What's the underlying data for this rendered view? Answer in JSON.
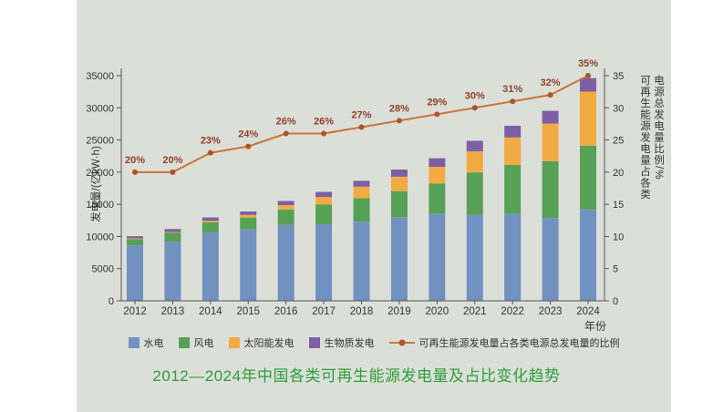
{
  "title": "2012—2024年中国各类可再生能源发电量及占比变化趋势",
  "axes": {
    "left_label": "发电量/(亿kW·h)",
    "right_label_line1": "可再生能源发电量占各类",
    "right_label_line2": "电源总发电量比例/%",
    "x_label": "年份"
  },
  "colors": {
    "panel": "#dcdfd8",
    "axis": "#555555",
    "tick_text": "#333333",
    "line": "#c8763c",
    "line_dot": "#a9562c",
    "pct_label": "#8f3f2c",
    "title": "#2e9e3e"
  },
  "chart_data": {
    "type": "bar",
    "subtype": "stacked-bars-with-percentage-line",
    "categories": [
      "2012",
      "2013",
      "2014",
      "2015",
      "2016",
      "2017",
      "2018",
      "2019",
      "2020",
      "2021",
      "2022",
      "2023",
      "2024"
    ],
    "series": [
      {
        "name": "水电",
        "color": "#7191c1",
        "values": [
          8600,
          9200,
          10600,
          11100,
          11800,
          11900,
          12300,
          13000,
          13550,
          13400,
          13500,
          12850,
          14200
        ]
      },
      {
        "name": "风电",
        "color": "#57a157",
        "values": [
          1000,
          1400,
          1600,
          1850,
          2400,
          3050,
          3660,
          4050,
          4670,
          6560,
          7620,
          8860,
          9920
        ]
      },
      {
        "name": "太阳能发电",
        "color": "#f2aa42",
        "values": [
          100,
          90,
          240,
          400,
          670,
          1180,
          1780,
          2240,
          2610,
          3270,
          4270,
          5840,
          8400
        ]
      },
      {
        "name": "生物质发电",
        "color": "#7d5fa5",
        "values": [
          340,
          470,
          520,
          530,
          650,
          800,
          910,
          1110,
          1330,
          1640,
          1820,
          1980,
          2100
        ]
      }
    ],
    "line_series": {
      "name": "可再生能源发电量占各类电源总发电量的比例",
      "values": [
        20,
        20,
        23,
        24,
        26,
        26,
        27,
        28,
        29,
        30,
        31,
        32,
        35
      ],
      "labels": [
        "20%",
        "20%",
        "23%",
        "24%",
        "26%",
        "26%",
        "27%",
        "28%",
        "29%",
        "30%",
        "31%",
        "32%",
        "35%"
      ]
    },
    "ylim_left": [
      0,
      35000
    ],
    "ytick_step_left": 5000,
    "ylim_right": [
      0,
      35
    ],
    "ytick_step_right": 5,
    "grid": false,
    "legend_position": "bottom"
  }
}
